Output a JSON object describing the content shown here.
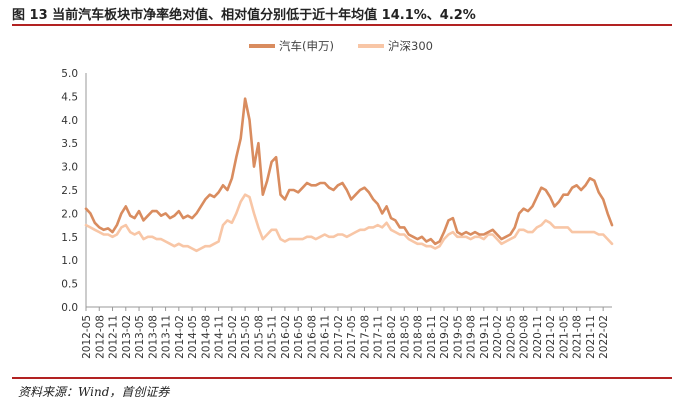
{
  "figure": {
    "title": "图 13 当前汽车板块市净率绝对值、相对值分别低于近十年均值 14.1%、4.2%",
    "source": "资料来源：Wind，首创证券"
  },
  "colors": {
    "auto": "#d98c5f",
    "hs300": "#f8c6a6",
    "rule": "#b22222"
  },
  "chart_data": {
    "type": "line",
    "title": "",
    "xlabel": "",
    "ylabel": "",
    "ylim": [
      0,
      5
    ],
    "yticks": [
      "0.0",
      "0.5",
      "1.0",
      "1.5",
      "2.0",
      "2.5",
      "3.0",
      "3.5",
      "4.0",
      "4.5",
      "5.0"
    ],
    "x_tick_labels": [
      "2012-05",
      "2012-08",
      "2012-11",
      "2013-02",
      "2013-05",
      "2013-08",
      "2013-11",
      "2014-02",
      "2014-05",
      "2014-08",
      "2014-11",
      "2015-02",
      "2015-05",
      "2015-08",
      "2015-11",
      "2016-02",
      "2016-05",
      "2016-08",
      "2016-11",
      "2017-02",
      "2017-05",
      "2017-08",
      "2017-11",
      "2018-02",
      "2018-05",
      "2018-08",
      "2018-11",
      "2019-02",
      "2019-05",
      "2019-08",
      "2019-11",
      "2020-02",
      "2020-05",
      "2020-08",
      "2020-11",
      "2021-02",
      "2021-05",
      "2021-08",
      "2021-11",
      "2022-02"
    ],
    "grid": false,
    "legend": "top",
    "series": [
      {
        "name": "汽车(申万)",
        "color_key": "auto",
        "points": [
          [
            "2012-05",
            2.1
          ],
          [
            "2012-06",
            2.0
          ],
          [
            "2012-07",
            1.8
          ],
          [
            "2012-08",
            1.7
          ],
          [
            "2012-09",
            1.65
          ],
          [
            "2012-10",
            1.68
          ],
          [
            "2012-11",
            1.6
          ],
          [
            "2012-12",
            1.75
          ],
          [
            "2013-01",
            2.0
          ],
          [
            "2013-02",
            2.15
          ],
          [
            "2013-03",
            1.95
          ],
          [
            "2013-04",
            1.9
          ],
          [
            "2013-05",
            2.05
          ],
          [
            "2013-06",
            1.85
          ],
          [
            "2013-07",
            1.95
          ],
          [
            "2013-08",
            2.05
          ],
          [
            "2013-09",
            2.05
          ],
          [
            "2013-10",
            1.95
          ],
          [
            "2013-11",
            2.0
          ],
          [
            "2013-12",
            1.9
          ],
          [
            "2014-01",
            1.95
          ],
          [
            "2014-02",
            2.05
          ],
          [
            "2014-03",
            1.9
          ],
          [
            "2014-04",
            1.95
          ],
          [
            "2014-05",
            1.9
          ],
          [
            "2014-06",
            2.0
          ],
          [
            "2014-07",
            2.15
          ],
          [
            "2014-08",
            2.3
          ],
          [
            "2014-09",
            2.4
          ],
          [
            "2014-10",
            2.35
          ],
          [
            "2014-11",
            2.45
          ],
          [
            "2014-12",
            2.6
          ],
          [
            "2015-01",
            2.5
          ],
          [
            "2015-02",
            2.75
          ],
          [
            "2015-03",
            3.2
          ],
          [
            "2015-04",
            3.6
          ],
          [
            "2015-05",
            4.45
          ],
          [
            "2015-06",
            4.0
          ],
          [
            "2015-07",
            3.0
          ],
          [
            "2015-08",
            3.5
          ],
          [
            "2015-09",
            2.4
          ],
          [
            "2015-10",
            2.7
          ],
          [
            "2015-11",
            3.1
          ],
          [
            "2015-12",
            3.2
          ],
          [
            "2016-01",
            2.4
          ],
          [
            "2016-02",
            2.3
          ],
          [
            "2016-03",
            2.5
          ],
          [
            "2016-04",
            2.5
          ],
          [
            "2016-05",
            2.45
          ],
          [
            "2016-06",
            2.55
          ],
          [
            "2016-07",
            2.65
          ],
          [
            "2016-08",
            2.6
          ],
          [
            "2016-09",
            2.6
          ],
          [
            "2016-10",
            2.65
          ],
          [
            "2016-11",
            2.65
          ],
          [
            "2016-12",
            2.55
          ],
          [
            "2017-01",
            2.5
          ],
          [
            "2017-02",
            2.6
          ],
          [
            "2017-03",
            2.65
          ],
          [
            "2017-04",
            2.5
          ],
          [
            "2017-05",
            2.3
          ],
          [
            "2017-06",
            2.4
          ],
          [
            "2017-07",
            2.5
          ],
          [
            "2017-08",
            2.55
          ],
          [
            "2017-09",
            2.45
          ],
          [
            "2017-10",
            2.3
          ],
          [
            "2017-11",
            2.2
          ],
          [
            "2017-12",
            2.0
          ],
          [
            "2018-01",
            2.15
          ],
          [
            "2018-02",
            1.9
          ],
          [
            "2018-03",
            1.85
          ],
          [
            "2018-04",
            1.7
          ],
          [
            "2018-05",
            1.7
          ],
          [
            "2018-06",
            1.55
          ],
          [
            "2018-07",
            1.5
          ],
          [
            "2018-08",
            1.45
          ],
          [
            "2018-09",
            1.5
          ],
          [
            "2018-10",
            1.4
          ],
          [
            "2018-11",
            1.45
          ],
          [
            "2018-12",
            1.35
          ],
          [
            "2019-01",
            1.4
          ],
          [
            "2019-02",
            1.6
          ],
          [
            "2019-03",
            1.85
          ],
          [
            "2019-04",
            1.9
          ],
          [
            "2019-05",
            1.6
          ],
          [
            "2019-06",
            1.55
          ],
          [
            "2019-07",
            1.6
          ],
          [
            "2019-08",
            1.55
          ],
          [
            "2019-09",
            1.6
          ],
          [
            "2019-10",
            1.55
          ],
          [
            "2019-11",
            1.55
          ],
          [
            "2019-12",
            1.6
          ],
          [
            "2020-01",
            1.65
          ],
          [
            "2020-02",
            1.55
          ],
          [
            "2020-03",
            1.45
          ],
          [
            "2020-04",
            1.5
          ],
          [
            "2020-05",
            1.55
          ],
          [
            "2020-06",
            1.7
          ],
          [
            "2020-07",
            2.0
          ],
          [
            "2020-08",
            2.1
          ],
          [
            "2020-09",
            2.05
          ],
          [
            "2020-10",
            2.15
          ],
          [
            "2020-11",
            2.35
          ],
          [
            "2020-12",
            2.55
          ],
          [
            "2021-01",
            2.5
          ],
          [
            "2021-02",
            2.35
          ],
          [
            "2021-03",
            2.15
          ],
          [
            "2021-04",
            2.25
          ],
          [
            "2021-05",
            2.4
          ],
          [
            "2021-06",
            2.4
          ],
          [
            "2021-07",
            2.55
          ],
          [
            "2021-08",
            2.6
          ],
          [
            "2021-09",
            2.5
          ],
          [
            "2021-10",
            2.6
          ],
          [
            "2021-11",
            2.75
          ],
          [
            "2021-12",
            2.7
          ],
          [
            "2022-01",
            2.45
          ],
          [
            "2022-02",
            2.3
          ],
          [
            "2022-03",
            2.0
          ],
          [
            "2022-04",
            1.75
          ]
        ]
      },
      {
        "name": "沪深300",
        "color_key": "hs300",
        "points": [
          [
            "2012-05",
            1.75
          ],
          [
            "2012-06",
            1.7
          ],
          [
            "2012-07",
            1.65
          ],
          [
            "2012-08",
            1.6
          ],
          [
            "2012-09",
            1.55
          ],
          [
            "2012-10",
            1.55
          ],
          [
            "2012-11",
            1.5
          ],
          [
            "2012-12",
            1.55
          ],
          [
            "2013-01",
            1.7
          ],
          [
            "2013-02",
            1.75
          ],
          [
            "2013-03",
            1.6
          ],
          [
            "2013-04",
            1.55
          ],
          [
            "2013-05",
            1.6
          ],
          [
            "2013-06",
            1.45
          ],
          [
            "2013-07",
            1.5
          ],
          [
            "2013-08",
            1.5
          ],
          [
            "2013-09",
            1.45
          ],
          [
            "2013-10",
            1.45
          ],
          [
            "2013-11",
            1.4
          ],
          [
            "2013-12",
            1.35
          ],
          [
            "2014-01",
            1.3
          ],
          [
            "2014-02",
            1.35
          ],
          [
            "2014-03",
            1.3
          ],
          [
            "2014-04",
            1.3
          ],
          [
            "2014-05",
            1.25
          ],
          [
            "2014-06",
            1.2
          ],
          [
            "2014-07",
            1.25
          ],
          [
            "2014-08",
            1.3
          ],
          [
            "2014-09",
            1.3
          ],
          [
            "2014-10",
            1.35
          ],
          [
            "2014-11",
            1.4
          ],
          [
            "2014-12",
            1.75
          ],
          [
            "2015-01",
            1.85
          ],
          [
            "2015-02",
            1.8
          ],
          [
            "2015-03",
            2.0
          ],
          [
            "2015-04",
            2.25
          ],
          [
            "2015-05",
            2.4
          ],
          [
            "2015-06",
            2.35
          ],
          [
            "2015-07",
            2.0
          ],
          [
            "2015-08",
            1.7
          ],
          [
            "2015-09",
            1.45
          ],
          [
            "2015-10",
            1.55
          ],
          [
            "2015-11",
            1.65
          ],
          [
            "2015-12",
            1.65
          ],
          [
            "2016-01",
            1.45
          ],
          [
            "2016-02",
            1.4
          ],
          [
            "2016-03",
            1.45
          ],
          [
            "2016-04",
            1.45
          ],
          [
            "2016-05",
            1.45
          ],
          [
            "2016-06",
            1.45
          ],
          [
            "2016-07",
            1.5
          ],
          [
            "2016-08",
            1.5
          ],
          [
            "2016-09",
            1.45
          ],
          [
            "2016-10",
            1.5
          ],
          [
            "2016-11",
            1.55
          ],
          [
            "2016-12",
            1.5
          ],
          [
            "2017-01",
            1.5
          ],
          [
            "2017-02",
            1.55
          ],
          [
            "2017-03",
            1.55
          ],
          [
            "2017-04",
            1.5
          ],
          [
            "2017-05",
            1.55
          ],
          [
            "2017-06",
            1.6
          ],
          [
            "2017-07",
            1.65
          ],
          [
            "2017-08",
            1.65
          ],
          [
            "2017-09",
            1.7
          ],
          [
            "2017-10",
            1.7
          ],
          [
            "2017-11",
            1.75
          ],
          [
            "2017-12",
            1.7
          ],
          [
            "2018-01",
            1.8
          ],
          [
            "2018-02",
            1.65
          ],
          [
            "2018-03",
            1.6
          ],
          [
            "2018-04",
            1.55
          ],
          [
            "2018-05",
            1.55
          ],
          [
            "2018-06",
            1.45
          ],
          [
            "2018-07",
            1.4
          ],
          [
            "2018-08",
            1.35
          ],
          [
            "2018-09",
            1.35
          ],
          [
            "2018-10",
            1.3
          ],
          [
            "2018-11",
            1.3
          ],
          [
            "2018-12",
            1.25
          ],
          [
            "2019-01",
            1.3
          ],
          [
            "2019-02",
            1.45
          ],
          [
            "2019-03",
            1.55
          ],
          [
            "2019-04",
            1.6
          ],
          [
            "2019-05",
            1.5
          ],
          [
            "2019-06",
            1.5
          ],
          [
            "2019-07",
            1.5
          ],
          [
            "2019-08",
            1.45
          ],
          [
            "2019-09",
            1.5
          ],
          [
            "2019-10",
            1.5
          ],
          [
            "2019-11",
            1.45
          ],
          [
            "2019-12",
            1.55
          ],
          [
            "2020-01",
            1.55
          ],
          [
            "2020-02",
            1.45
          ],
          [
            "2020-03",
            1.35
          ],
          [
            "2020-04",
            1.4
          ],
          [
            "2020-05",
            1.45
          ],
          [
            "2020-06",
            1.5
          ],
          [
            "2020-07",
            1.65
          ],
          [
            "2020-08",
            1.65
          ],
          [
            "2020-09",
            1.6
          ],
          [
            "2020-10",
            1.6
          ],
          [
            "2020-11",
            1.7
          ],
          [
            "2020-12",
            1.75
          ],
          [
            "2021-01",
            1.85
          ],
          [
            "2021-02",
            1.8
          ],
          [
            "2021-03",
            1.7
          ],
          [
            "2021-04",
            1.7
          ],
          [
            "2021-05",
            1.7
          ],
          [
            "2021-06",
            1.7
          ],
          [
            "2021-07",
            1.6
          ],
          [
            "2021-08",
            1.6
          ],
          [
            "2021-09",
            1.6
          ],
          [
            "2021-10",
            1.6
          ],
          [
            "2021-11",
            1.6
          ],
          [
            "2021-12",
            1.6
          ],
          [
            "2022-01",
            1.55
          ],
          [
            "2022-02",
            1.55
          ],
          [
            "2022-03",
            1.45
          ],
          [
            "2022-04",
            1.35
          ]
        ]
      }
    ]
  }
}
